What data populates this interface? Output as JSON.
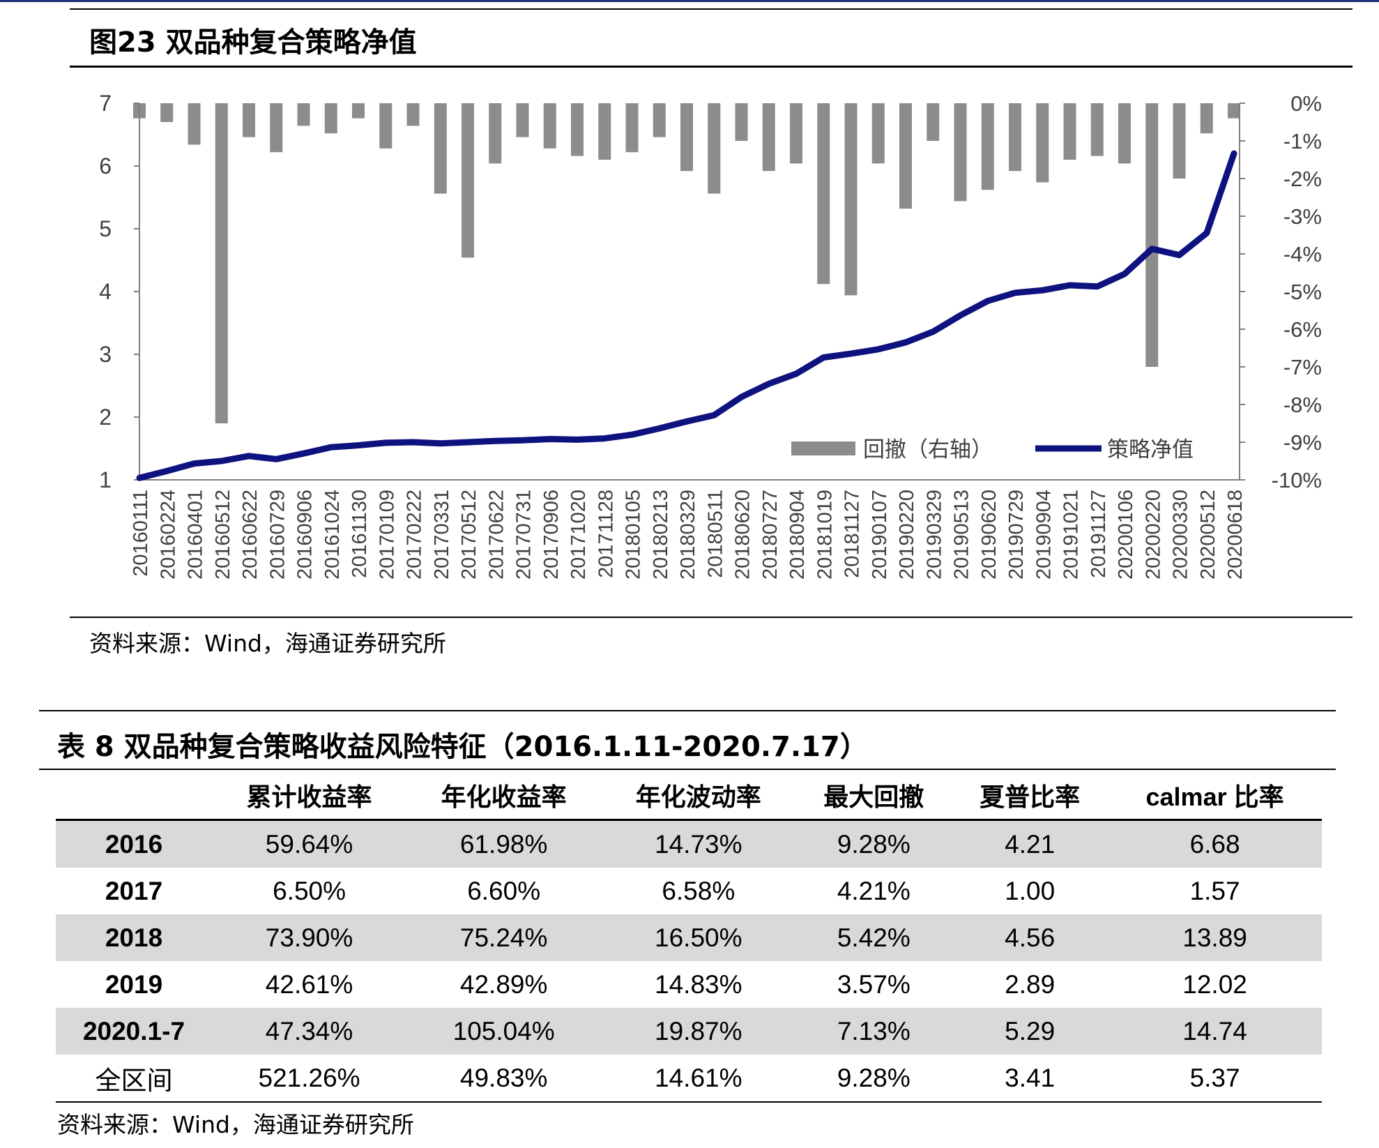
{
  "figure": {
    "title": "图23 双品种复合策略净值",
    "source": "资料来源：Wind，海通证券研究所"
  },
  "colors": {
    "nav_line": "#0d127f",
    "drawdown_fill": "#8c8c8c",
    "row_shade": "#d9d9d9"
  },
  "chart_data": {
    "type": "line",
    "left_axis": {
      "ylim": [
        1,
        7
      ],
      "ticks": [
        "1",
        "2",
        "3",
        "4",
        "5",
        "6",
        "7"
      ]
    },
    "right_axis": {
      "ylim": [
        -10,
        0
      ],
      "ticks": [
        "0%",
        "-1%",
        "-2%",
        "-3%",
        "-4%",
        "-5%",
        "-6%",
        "-7%",
        "-8%",
        "-9%",
        "-10%"
      ],
      "inverted": true
    },
    "x_tick_labels": [
      "20160111",
      "20160224",
      "20160401",
      "20160512",
      "20160622",
      "20160729",
      "20160906",
      "20161024",
      "20161130",
      "20170109",
      "20170222",
      "20170331",
      "20170512",
      "20170622",
      "20170731",
      "20170906",
      "20171020",
      "20171128",
      "20180105",
      "20180213",
      "20180329",
      "20180511",
      "20180620",
      "20180727",
      "20180904",
      "20181019",
      "20181127",
      "20190107",
      "20190220",
      "20190329",
      "20190513",
      "20190620",
      "20190729",
      "20190904",
      "20191021",
      "20191127",
      "20200106",
      "20200220",
      "20200330",
      "20200512",
      "20200618"
    ],
    "legend": {
      "placement": "bottom-right",
      "items": [
        "回撤（右轴）",
        "策略净值"
      ]
    },
    "series": [
      {
        "name": "策略净值",
        "axis": "left",
        "type": "line",
        "points": [
          [
            "20160111",
            1.03
          ],
          [
            "20160224",
            1.14
          ],
          [
            "20160401",
            1.26
          ],
          [
            "20160512",
            1.3
          ],
          [
            "20160622",
            1.38
          ],
          [
            "20160729",
            1.33
          ],
          [
            "20160906",
            1.42
          ],
          [
            "20161024",
            1.52
          ],
          [
            "20161130",
            1.55
          ],
          [
            "20170109",
            1.59
          ],
          [
            "20170222",
            1.6
          ],
          [
            "20170331",
            1.58
          ],
          [
            "20170512",
            1.6
          ],
          [
            "20170622",
            1.62
          ],
          [
            "20170731",
            1.63
          ],
          [
            "20170906",
            1.65
          ],
          [
            "20171020",
            1.64
          ],
          [
            "20171128",
            1.66
          ],
          [
            "20180105",
            1.72
          ],
          [
            "20180213",
            1.82
          ],
          [
            "20180329",
            1.93
          ],
          [
            "20180511",
            2.03
          ],
          [
            "20180620",
            2.32
          ],
          [
            "20180727",
            2.53
          ],
          [
            "20180904",
            2.69
          ],
          [
            "20181019",
            2.95
          ],
          [
            "20181127",
            3.01
          ],
          [
            "20190107",
            3.08
          ],
          [
            "20190220",
            3.19
          ],
          [
            "20190329",
            3.36
          ],
          [
            "20190513",
            3.62
          ],
          [
            "20190620",
            3.85
          ],
          [
            "20190729",
            3.98
          ],
          [
            "20190904",
            4.02
          ],
          [
            "20191021",
            4.1
          ],
          [
            "20191127",
            4.08
          ],
          [
            "20200106",
            4.28
          ],
          [
            "20200220",
            4.68
          ],
          [
            "20200330",
            4.58
          ],
          [
            "20200512",
            4.93
          ],
          [
            "20200618",
            6.2
          ]
        ]
      },
      {
        "name": "回撤（右轴）",
        "axis": "right",
        "type": "area",
        "points": [
          [
            "20160111",
            -0.4
          ],
          [
            "20160224",
            -0.5
          ],
          [
            "20160401",
            -1.1
          ],
          [
            "20160512",
            -8.5
          ],
          [
            "20160622",
            -0.9
          ],
          [
            "20160729",
            -1.3
          ],
          [
            "20160906",
            -0.6
          ],
          [
            "20161024",
            -0.8
          ],
          [
            "20161130",
            -0.4
          ],
          [
            "20170109",
            -1.2
          ],
          [
            "20170222",
            -0.6
          ],
          [
            "20170331",
            -2.4
          ],
          [
            "20170512",
            -4.1
          ],
          [
            "20170622",
            -1.6
          ],
          [
            "20170731",
            -0.9
          ],
          [
            "20170906",
            -1.2
          ],
          [
            "20171020",
            -1.4
          ],
          [
            "20171128",
            -1.5
          ],
          [
            "20180105",
            -1.3
          ],
          [
            "20180213",
            -0.9
          ],
          [
            "20180329",
            -1.8
          ],
          [
            "20180511",
            -2.4
          ],
          [
            "20180620",
            -1.0
          ],
          [
            "20180727",
            -1.8
          ],
          [
            "20180904",
            -1.6
          ],
          [
            "20181019",
            -4.8
          ],
          [
            "20181127",
            -5.1
          ],
          [
            "20190107",
            -1.6
          ],
          [
            "20190220",
            -2.8
          ],
          [
            "20190329",
            -1.0
          ],
          [
            "20190513",
            -2.6
          ],
          [
            "20190620",
            -2.3
          ],
          [
            "20190729",
            -1.8
          ],
          [
            "20190904",
            -2.1
          ],
          [
            "20191021",
            -1.5
          ],
          [
            "20191127",
            -1.4
          ],
          [
            "20200106",
            -1.6
          ],
          [
            "20200220",
            -7.0
          ],
          [
            "20200330",
            -2.0
          ],
          [
            "20200512",
            -0.8
          ],
          [
            "20200618",
            -0.4
          ]
        ]
      }
    ]
  },
  "table": {
    "title": "表 8  双品种复合策略收益风险特征（2016.1.11-2020.7.17）",
    "headers": [
      "",
      "累计收益率",
      "年化收益率",
      "年化波动率",
      "最大回撤",
      "夏普比率",
      "calmar 比率"
    ],
    "rows": [
      [
        "2016",
        "59.64%",
        "61.98%",
        "14.73%",
        "9.28%",
        "4.21",
        "6.68"
      ],
      [
        "2017",
        "6.50%",
        "6.60%",
        "6.58%",
        "4.21%",
        "1.00",
        "1.57"
      ],
      [
        "2018",
        "73.90%",
        "75.24%",
        "16.50%",
        "5.42%",
        "4.56",
        "13.89"
      ],
      [
        "2019",
        "42.61%",
        "42.89%",
        "14.83%",
        "3.57%",
        "2.89",
        "12.02"
      ],
      [
        "2020.1-7",
        "47.34%",
        "105.04%",
        "19.87%",
        "7.13%",
        "5.29",
        "14.74"
      ],
      [
        "全区间",
        "521.26%",
        "49.83%",
        "14.61%",
        "9.28%",
        "3.41",
        "5.37"
      ]
    ],
    "source": "资料来源：Wind，海通证券研究所"
  }
}
